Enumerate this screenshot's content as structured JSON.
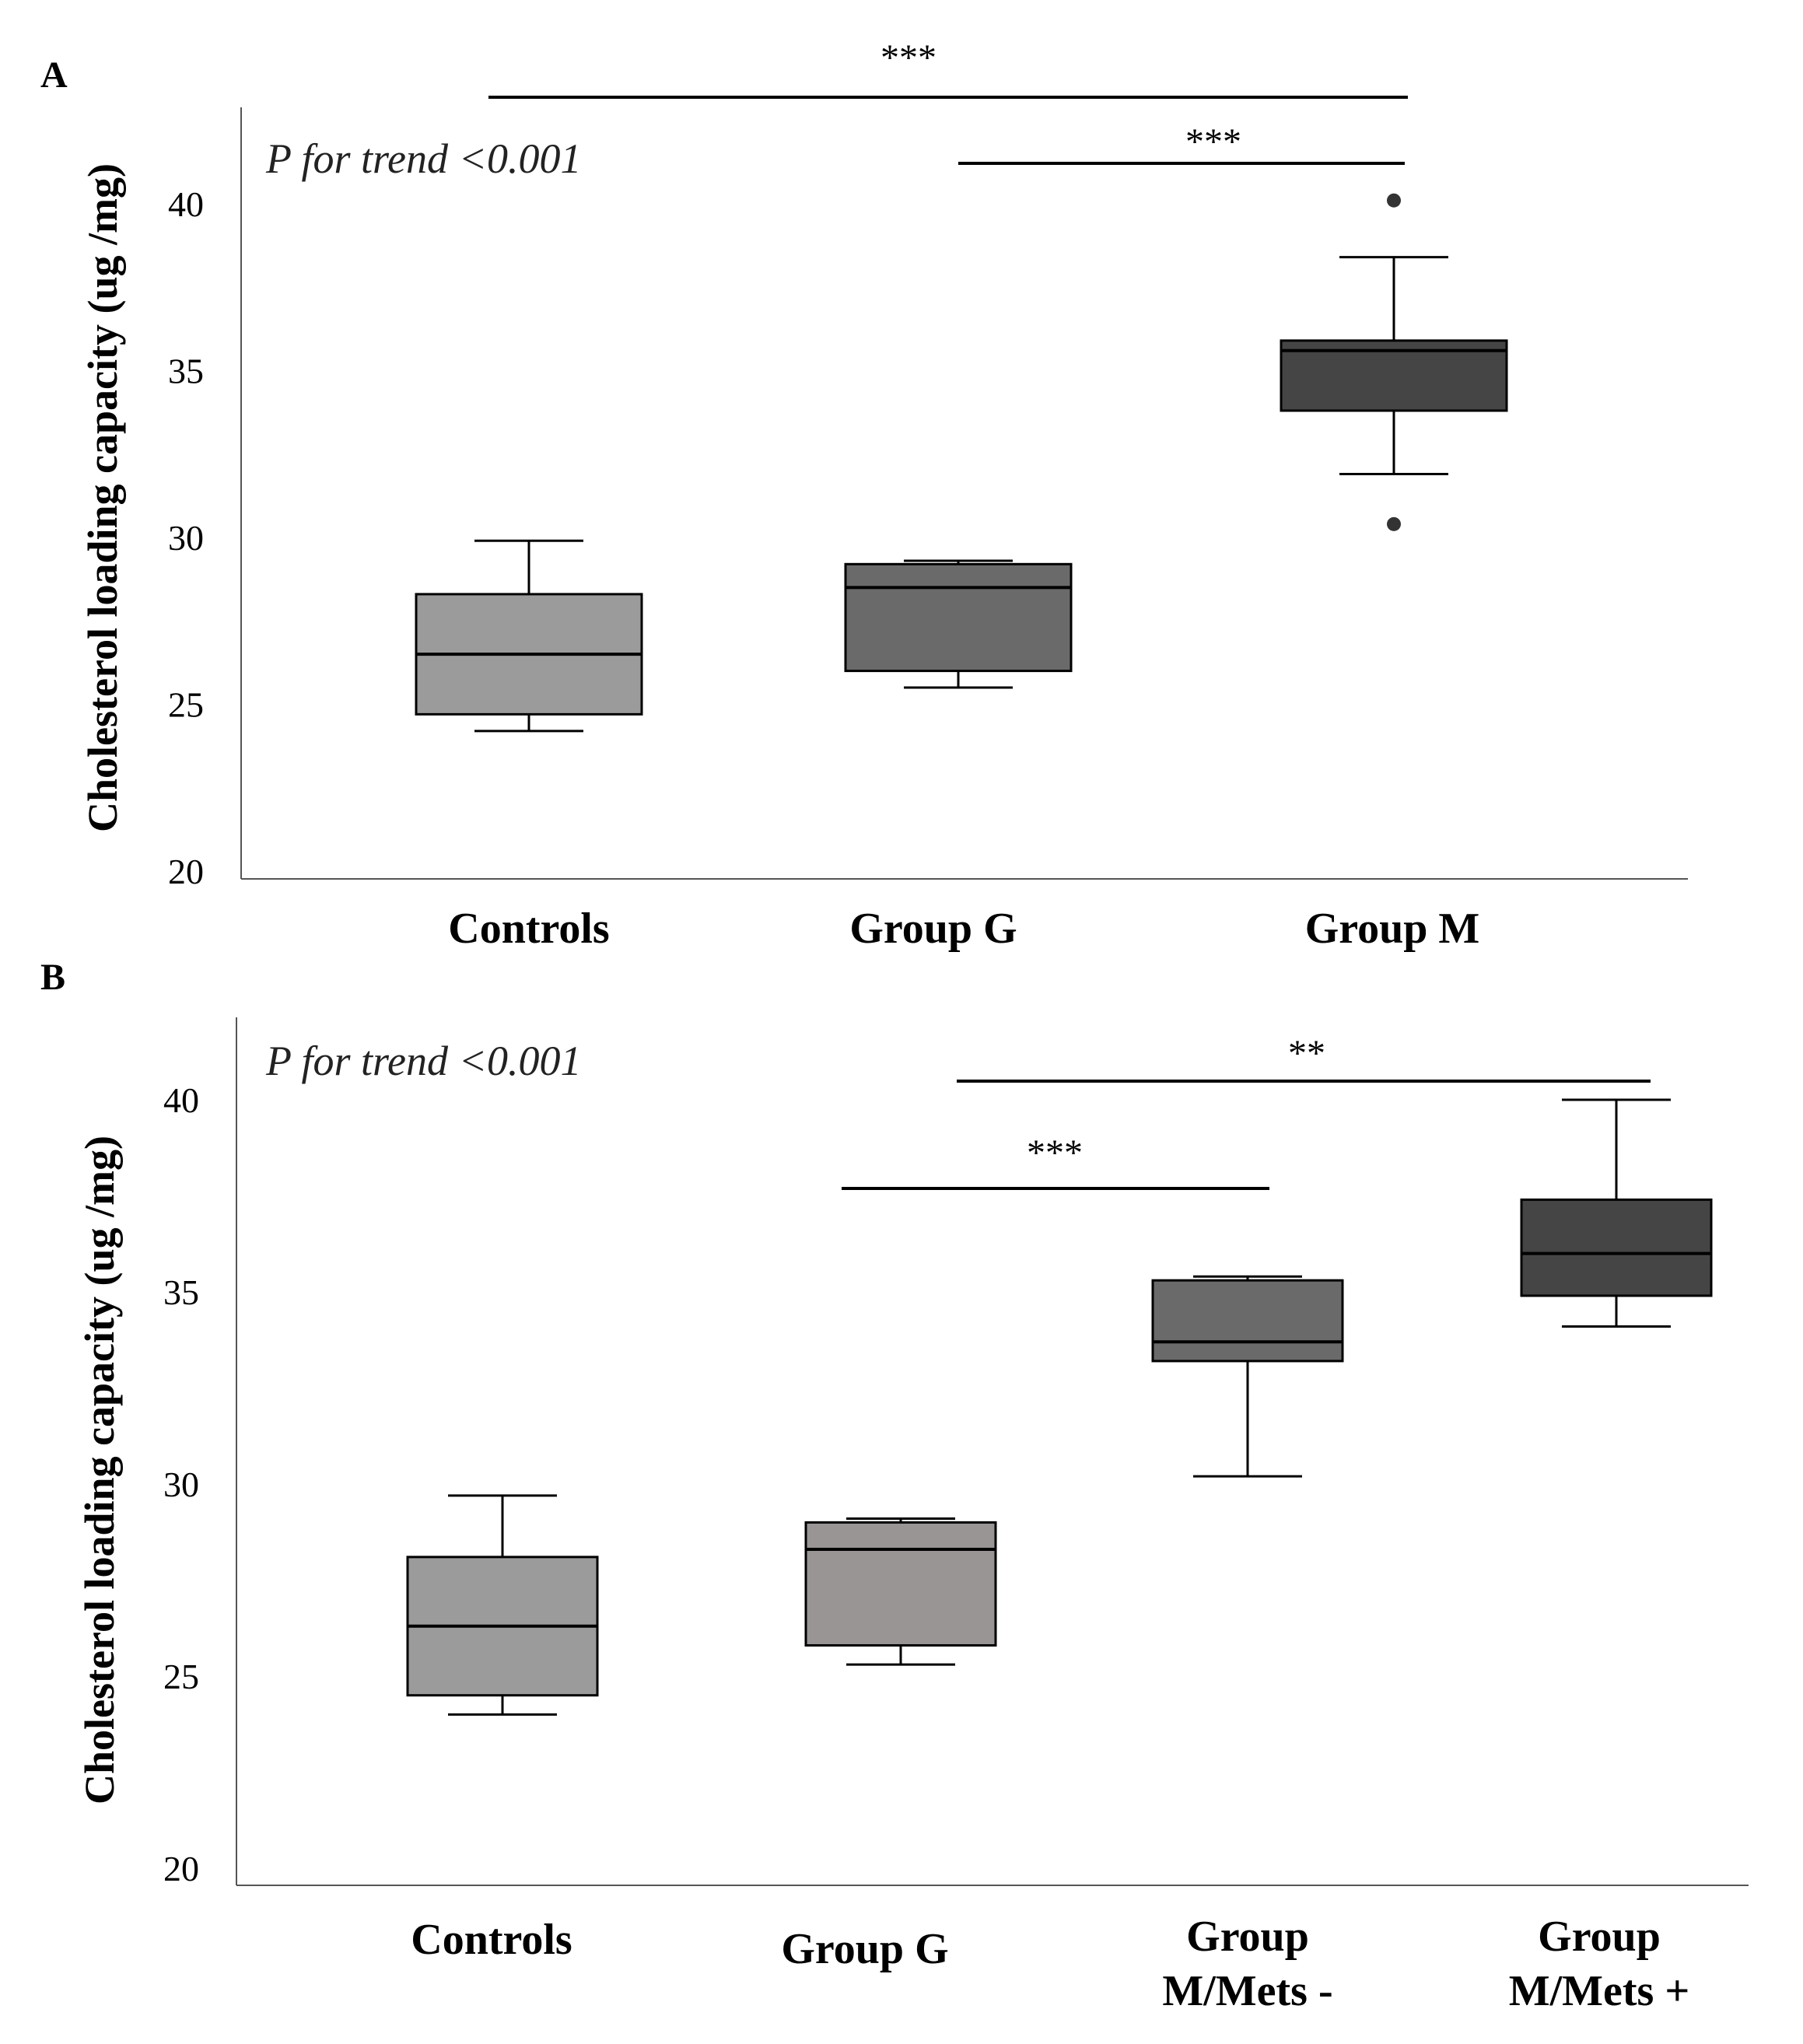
{
  "chart_data": [
    {
      "type": "box",
      "panel": "A",
      "ylabel": "Cholesterol loading capacity (ug /mg)",
      "ylim": [
        20,
        42
      ],
      "yticks": [
        20,
        25,
        30,
        35,
        40
      ],
      "annotation": "P for trend <0.001",
      "categories": [
        "Controls",
        "Group G",
        "Group M"
      ],
      "boxes": [
        {
          "category": "Controls",
          "whisker_low": 24.2,
          "q1": 24.7,
          "median": 26.5,
          "q3": 28.3,
          "whisker_high": 29.9,
          "outliers": [],
          "color": "#9b9b9b"
        },
        {
          "category": "Group G",
          "whisker_low": 25.5,
          "q1": 26.0,
          "median": 28.5,
          "q3": 29.2,
          "whisker_high": 29.3,
          "outliers": [],
          "color": "#6a6a6a"
        },
        {
          "category": "Group M",
          "whisker_low": 31.9,
          "q1": 33.8,
          "median": 35.6,
          "q3": 35.9,
          "whisker_high": 38.4,
          "outliers": [
            40.1,
            30.4
          ],
          "color": "#454545"
        }
      ],
      "significance": [
        {
          "from": "Controls",
          "to": "Group M",
          "label": "***"
        },
        {
          "from": "Group G",
          "to": "Group M",
          "label": "***"
        }
      ]
    },
    {
      "type": "box",
      "panel": "B",
      "ylabel": "Cholesterol loading capacity (ug /mg)",
      "ylim": [
        20,
        42
      ],
      "yticks": [
        20,
        25,
        30,
        35,
        40
      ],
      "annotation": "P for trend <0.001",
      "categories": [
        "Controls",
        "Group G",
        "Group M/Mets -",
        "Group M/Mets +"
      ],
      "category_lines": [
        [
          "Controls"
        ],
        [
          "Group G"
        ],
        [
          "Group",
          "M/Mets -"
        ],
        [
          "Group",
          "M/Mets +"
        ]
      ],
      "boxes": [
        {
          "category": "Controls",
          "whisker_low": 24.0,
          "q1": 24.5,
          "median": 26.3,
          "q3": 28.1,
          "whisker_high": 29.7,
          "outliers": [],
          "color": "#9b9b9b"
        },
        {
          "category": "Group G",
          "whisker_low": 25.3,
          "q1": 25.8,
          "median": 28.3,
          "q3": 29.0,
          "whisker_high": 29.1,
          "outliers": [],
          "color": "#9a9595"
        },
        {
          "category": "Group M/Mets -",
          "whisker_low": 30.2,
          "q1": 33.2,
          "median": 33.7,
          "q3": 35.3,
          "whisker_high": 35.4,
          "outliers": [],
          "color": "#6a6a6a"
        },
        {
          "category": "Group M/Mets +",
          "whisker_low": 34.1,
          "q1": 34.9,
          "median": 36.0,
          "q3": 37.4,
          "whisker_high": 40.0,
          "outliers": [],
          "color": "#454545"
        }
      ],
      "significance": [
        {
          "from": "Group G",
          "to": "Group M/Mets +",
          "label": "**"
        },
        {
          "from": "Group G",
          "to": "Group M/Mets -",
          "label": "***"
        }
      ]
    }
  ]
}
